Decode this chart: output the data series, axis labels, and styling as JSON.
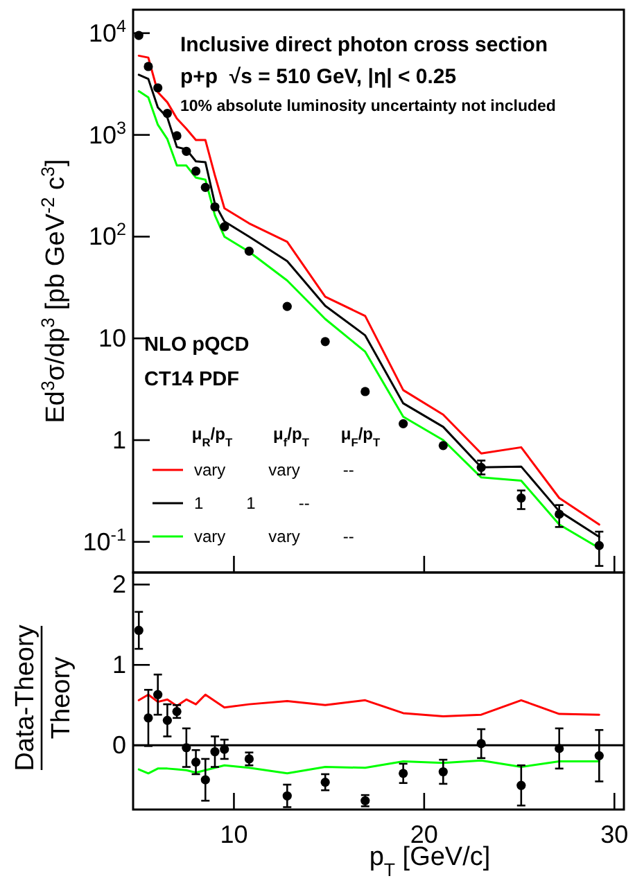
{
  "chart_data": [
    {
      "type": "line",
      "title": "Inclusive direct photon cross section",
      "subtitle": "p+p  √s = 510 GeV, |η| < 0.25",
      "ylabel": "Ed$^{3}$σ/dp$^{3}$ [pb GeV$^{-2}$ c$^{3}$]",
      "log": true,
      "tick_labels": "y",
      "legend": "bottom left",
      "legend_title": "μ$_{R}$/p$_{T}$   μ$_{f}$/p$_{T}$   μ$_{F}$/p$_{T}$",
      "annotations": [
        "10% absolute luminosity uncertainty not included",
        "NLO pQCD",
        "CT14 PDF"
      ],
      "xlim": [
        4.7,
        30.5
      ],
      "xticks": [
        10,
        20,
        30
      ],
      "ylim": [
        0.05,
        17000
      ],
      "yticks": [
        {
          "value": 0.1,
          "label": "10$^{-1}$"
        },
        1,
        10,
        {
          "value": 100,
          "label": "10$^{2}$"
        },
        {
          "value": 1000,
          "label": "10$^{3}$"
        },
        {
          "value": 10000,
          "label": "10$^{4}$"
        }
      ],
      "x": [
        5,
        5.5,
        6,
        6.5,
        7,
        7.5,
        8,
        8.5,
        9,
        9.5,
        10.8,
        12.8,
        14.8,
        16.9,
        18.9,
        21,
        23,
        25.1,
        27.1,
        29.2
      ],
      "series": [
        {
          "name": "vary   vary   --",
          "color": "#ff0000",
          "values": [
            6000,
            5750,
            2630,
            2090,
            1450,
            1150,
            890,
            890,
            400,
            190,
            135,
            89,
            25.7,
            16.6,
            3.1,
            1.78,
            0.74,
            0.85,
            0.27,
            0.148
          ]
        },
        {
          "name": "1   1   --",
          "color": "#000000",
          "values": [
            3900,
            3550,
            1860,
            1480,
            760,
            720,
            550,
            540,
            210,
            141,
            100,
            57.5,
            20.9,
            10.7,
            2.3,
            1.35,
            0.54,
            0.55,
            0.2,
            0.112
          ]
        },
        {
          "name": "vary   vary   --",
          "color": "#00ff00",
          "values": [
            2690,
            2340,
            1260,
            910,
            500,
            500,
            380,
            363,
            162,
            100,
            71,
            37,
            15.5,
            7.4,
            1.7,
            1.0,
            0.43,
            0.4,
            0.148,
            0.087
          ]
        },
        {
          "type": "scatter",
          "marker": "circle",
          "color": "#000000",
          "values": [
            9500,
            4700,
            2900,
            1630,
            980,
            690,
            440,
            305,
            196,
            125,
            72,
            20.6,
            9.3,
            3.0,
            1.45,
            0.885,
            0.54,
            0.27,
            0.187,
            0.092
          ],
          "errors": [
            null,
            null,
            null,
            null,
            null,
            null,
            null,
            null,
            null,
            null,
            null,
            null,
            null,
            null,
            null,
            null,
            [
              0.46,
              0.63
            ],
            [
              0.21,
              0.32
            ],
            [
              0.14,
              0.23
            ],
            [
              0.058,
              0.126
            ]
          ]
        }
      ]
    },
    {
      "type": "line",
      "xlabel": "p$_{T}$ [GeV/c]",
      "ylabel": "Data-Theory\nTheory",
      "xlim": [
        4.7,
        30.5
      ],
      "xticks": [
        10,
        20,
        30
      ],
      "ylim": [
        -0.8,
        2.15
      ],
      "yticks": [
        0,
        1,
        2
      ],
      "ref_lines": [
        {
          "axis": "y",
          "value": 0,
          "color": "#000000"
        }
      ],
      "x": [
        5,
        5.5,
        6,
        6.5,
        7,
        7.5,
        8,
        8.5,
        9,
        9.5,
        10.8,
        12.8,
        14.8,
        16.9,
        18.9,
        21,
        23,
        25.1,
        27.1,
        29.2
      ],
      "series": [
        {
          "color": "#ff0000",
          "values": [
            0.56,
            0.63,
            0.54,
            0.57,
            0.49,
            0.57,
            0.51,
            0.63,
            0.55,
            0.47,
            0.51,
            0.55,
            0.5,
            0.56,
            0.4,
            0.36,
            0.38,
            0.56,
            0.39,
            0.38
          ]
        },
        {
          "color": "#00ff00",
          "values": [
            -0.3,
            -0.35,
            -0.29,
            -0.29,
            -0.3,
            -0.31,
            -0.34,
            -0.31,
            -0.28,
            -0.25,
            -0.28,
            -0.35,
            -0.27,
            -0.28,
            -0.2,
            -0.22,
            -0.19,
            -0.27,
            -0.2,
            -0.2
          ]
        },
        {
          "type": "scatter",
          "marker": "circle",
          "color": "#000000",
          "values": [
            1.43,
            0.34,
            0.63,
            0.31,
            0.42,
            -0.03,
            -0.21,
            -0.43,
            -0.08,
            -0.05,
            -0.17,
            -0.63,
            -0.46,
            -0.69,
            -0.35,
            -0.33,
            0.02,
            -0.5,
            -0.04,
            -0.13
          ],
          "errors": [
            0.23,
            0.35,
            0.25,
            0.2,
            0.08,
            0.24,
            0.15,
            0.26,
            0.19,
            0.12,
            0.08,
            0.14,
            0.1,
            0.07,
            0.12,
            0.15,
            0.18,
            0.25,
            0.25,
            0.32
          ]
        }
      ]
    }
  ]
}
